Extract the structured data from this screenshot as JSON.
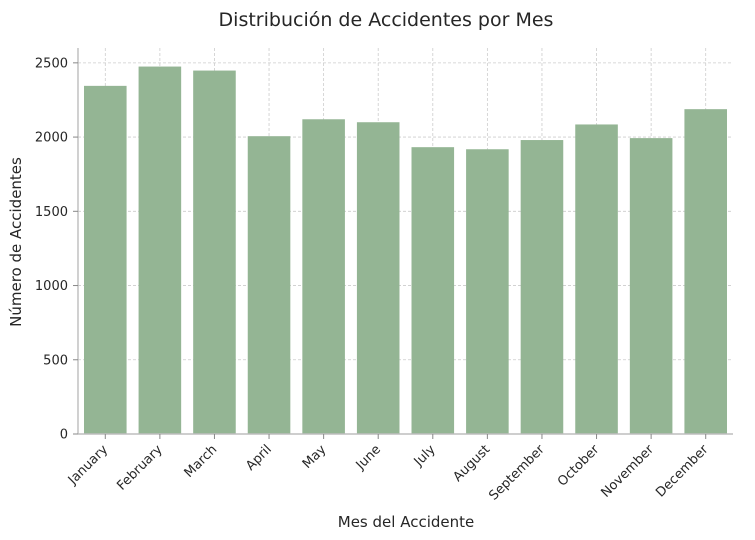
{
  "chart_data": {
    "type": "bar",
    "title": "Distribución de Accidentes por Mes",
    "xlabel": "Mes del Accidente",
    "ylabel": "Número de Accidentes",
    "categories": [
      "January",
      "February",
      "March",
      "April",
      "May",
      "June",
      "July",
      "August",
      "September",
      "October",
      "November",
      "December"
    ],
    "values": [
      2345,
      2475,
      2448,
      2006,
      2120,
      2100,
      1932,
      1918,
      1980,
      2085,
      1993,
      2188
    ],
    "ylim": [
      0,
      2600
    ],
    "yticks": [
      0,
      500,
      1000,
      1500,
      2000,
      2500
    ],
    "bar_color": "#94b594",
    "grid": true,
    "x_tick_rotation": -45
  }
}
